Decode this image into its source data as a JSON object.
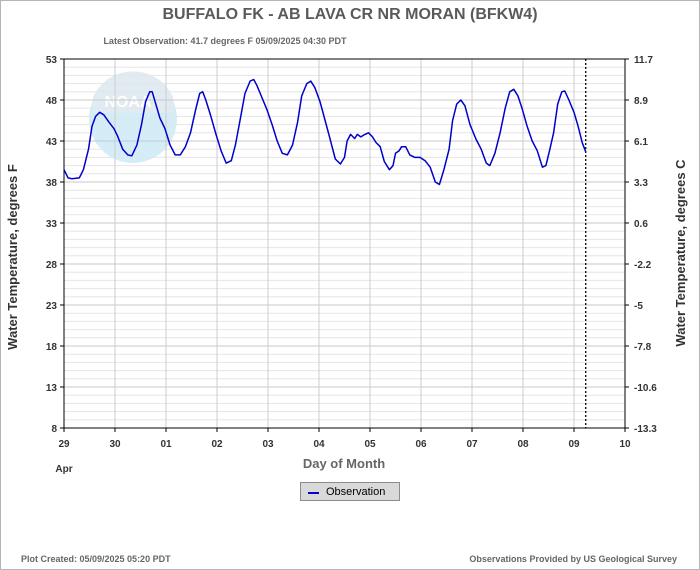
{
  "chart_data": {
    "type": "line",
    "title": "BUFFALO FK - AB LAVA CR NR MORAN  (BFKW4)",
    "subtitle": "Latest Observation: 41.7 degrees F 05/09/2025 04:30 PDT",
    "xlabel": "Day of Month",
    "ylabel_left": "Water Temperature, degrees F",
    "ylabel_right": "Water Temperature, degrees C",
    "x_unit": "days since Apr 29 00:00",
    "xlim": [
      0,
      11
    ],
    "ylim": [
      8,
      53
    ],
    "x_ticks": [
      {
        "x": 0,
        "label": "29"
      },
      {
        "x": 1,
        "label": "30"
      },
      {
        "x": 2,
        "label": "01"
      },
      {
        "x": 3,
        "label": "02"
      },
      {
        "x": 4,
        "label": "03"
      },
      {
        "x": 5,
        "label": "04"
      },
      {
        "x": 6,
        "label": "05"
      },
      {
        "x": 7,
        "label": "06"
      },
      {
        "x": 8,
        "label": "07"
      },
      {
        "x": 9,
        "label": "08"
      },
      {
        "x": 10,
        "label": "09"
      },
      {
        "x": 11,
        "label": "10"
      }
    ],
    "x_month_label": "Apr",
    "y_ticks_left": [
      53,
      48,
      43,
      38,
      33,
      28,
      23,
      18,
      13,
      8
    ],
    "y_ticks_right": [
      "11.7",
      "8.9",
      "6.1",
      "3.3",
      "0.6",
      "-2.2",
      "-5",
      "-7.8",
      "-10.6",
      "-13.3"
    ],
    "grid": true,
    "legend_position": "bottom-center",
    "latest_marker_x": 10.23,
    "series": [
      {
        "name": "Observation",
        "color": "#0000cc",
        "points": [
          [
            0.0,
            39.5
          ],
          [
            0.08,
            38.5
          ],
          [
            0.15,
            38.4
          ],
          [
            0.3,
            38.5
          ],
          [
            0.38,
            39.5
          ],
          [
            0.48,
            42.0
          ],
          [
            0.55,
            44.8
          ],
          [
            0.62,
            46.0
          ],
          [
            0.7,
            46.5
          ],
          [
            0.78,
            46.2
          ],
          [
            0.88,
            45.3
          ],
          [
            0.98,
            44.5
          ],
          [
            1.05,
            43.6
          ],
          [
            1.15,
            42.0
          ],
          [
            1.25,
            41.3
          ],
          [
            1.33,
            41.2
          ],
          [
            1.43,
            42.5
          ],
          [
            1.52,
            45.0
          ],
          [
            1.6,
            47.8
          ],
          [
            1.68,
            49.0
          ],
          [
            1.73,
            49.0
          ],
          [
            1.8,
            47.5
          ],
          [
            1.88,
            45.8
          ],
          [
            1.98,
            44.5
          ],
          [
            2.08,
            42.5
          ],
          [
            2.18,
            41.3
          ],
          [
            2.28,
            41.3
          ],
          [
            2.38,
            42.3
          ],
          [
            2.48,
            44.0
          ],
          [
            2.58,
            46.8
          ],
          [
            2.66,
            48.8
          ],
          [
            2.72,
            49.0
          ],
          [
            2.78,
            48.0
          ],
          [
            2.88,
            46.0
          ],
          [
            2.98,
            43.8
          ],
          [
            3.08,
            41.8
          ],
          [
            3.18,
            40.3
          ],
          [
            3.28,
            40.6
          ],
          [
            3.36,
            42.5
          ],
          [
            3.45,
            45.5
          ],
          [
            3.55,
            48.8
          ],
          [
            3.65,
            50.3
          ],
          [
            3.72,
            50.5
          ],
          [
            3.78,
            49.8
          ],
          [
            3.88,
            48.3
          ],
          [
            3.98,
            46.8
          ],
          [
            4.08,
            45.0
          ],
          [
            4.18,
            43.0
          ],
          [
            4.28,
            41.5
          ],
          [
            4.38,
            41.3
          ],
          [
            4.48,
            42.5
          ],
          [
            4.58,
            45.3
          ],
          [
            4.66,
            48.5
          ],
          [
            4.76,
            50.0
          ],
          [
            4.84,
            50.3
          ],
          [
            4.92,
            49.5
          ],
          [
            5.02,
            47.8
          ],
          [
            5.12,
            45.5
          ],
          [
            5.22,
            43.2
          ],
          [
            5.32,
            40.8
          ],
          [
            5.42,
            40.2
          ],
          [
            5.5,
            41.0
          ],
          [
            5.55,
            43.0
          ],
          [
            5.62,
            43.8
          ],
          [
            5.7,
            43.3
          ],
          [
            5.75,
            43.8
          ],
          [
            5.82,
            43.5
          ],
          [
            5.9,
            43.8
          ],
          [
            5.97,
            44.0
          ],
          [
            6.05,
            43.5
          ],
          [
            6.12,
            42.8
          ],
          [
            6.2,
            42.3
          ],
          [
            6.28,
            40.5
          ],
          [
            6.38,
            39.5
          ],
          [
            6.45,
            40.0
          ],
          [
            6.5,
            41.5
          ],
          [
            6.57,
            41.8
          ],
          [
            6.62,
            42.3
          ],
          [
            6.7,
            42.3
          ],
          [
            6.78,
            41.3
          ],
          [
            6.88,
            41.0
          ],
          [
            6.98,
            41.0
          ],
          [
            7.08,
            40.6
          ],
          [
            7.18,
            39.8
          ],
          [
            7.28,
            38.0
          ],
          [
            7.36,
            37.7
          ],
          [
            7.45,
            39.5
          ],
          [
            7.55,
            42.0
          ],
          [
            7.62,
            45.5
          ],
          [
            7.7,
            47.5
          ],
          [
            7.78,
            48.0
          ],
          [
            7.86,
            47.3
          ],
          [
            7.96,
            45.0
          ],
          [
            8.08,
            43.2
          ],
          [
            8.18,
            42.0
          ],
          [
            8.28,
            40.3
          ],
          [
            8.35,
            40.0
          ],
          [
            8.45,
            41.5
          ],
          [
            8.55,
            44.0
          ],
          [
            8.65,
            47.0
          ],
          [
            8.74,
            49.0
          ],
          [
            8.82,
            49.3
          ],
          [
            8.9,
            48.5
          ],
          [
            8.98,
            47.0
          ],
          [
            9.08,
            44.8
          ],
          [
            9.18,
            43.0
          ],
          [
            9.28,
            41.8
          ],
          [
            9.38,
            39.8
          ],
          [
            9.45,
            40.0
          ],
          [
            9.52,
            41.8
          ],
          [
            9.6,
            44.0
          ],
          [
            9.68,
            47.5
          ],
          [
            9.76,
            49.0
          ],
          [
            9.82,
            49.1
          ],
          [
            9.9,
            48.0
          ],
          [
            10.0,
            46.5
          ],
          [
            10.08,
            44.8
          ],
          [
            10.16,
            42.8
          ],
          [
            10.23,
            41.7
          ]
        ]
      }
    ]
  },
  "footer": {
    "created": "Plot Created: 05/09/2025 05:20 PDT",
    "credit": "Observations Provided by US Geological Survey"
  },
  "watermark": {
    "text": "NOAA",
    "icon": "noaa-logo-icon",
    "colors": [
      "#aee0f2",
      "#c9dbe8"
    ]
  }
}
